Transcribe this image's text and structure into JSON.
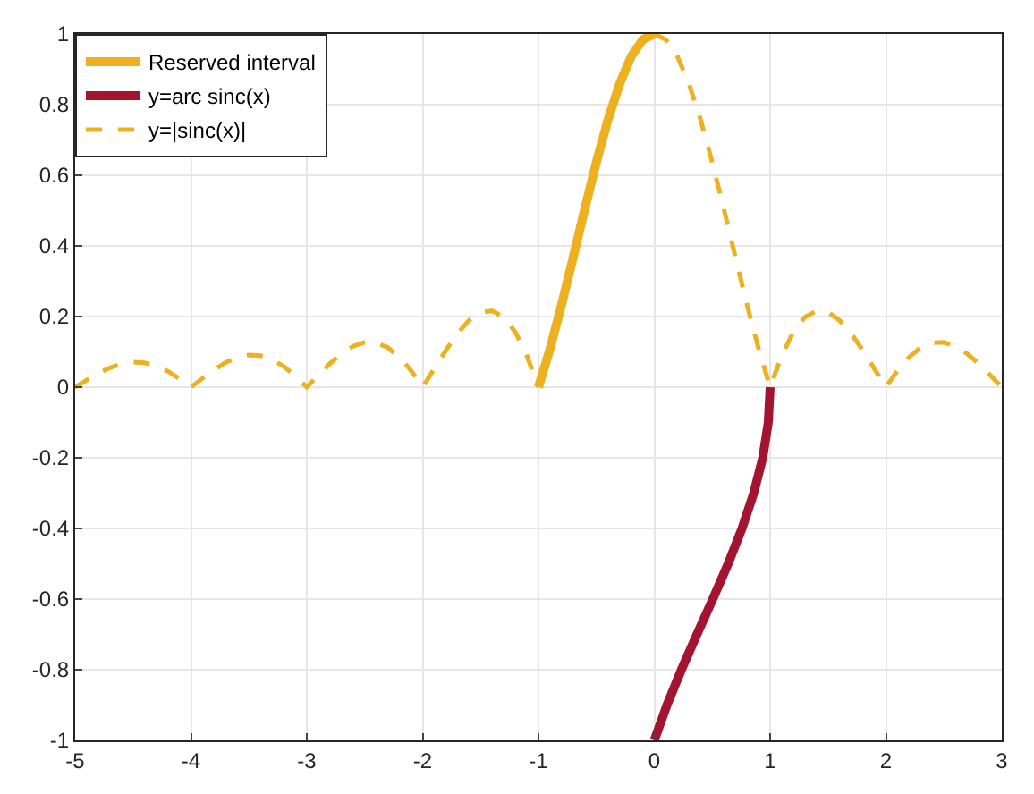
{
  "chart_data": {
    "type": "line",
    "xlim": [
      -5,
      3
    ],
    "xticks": [
      -5,
      -4,
      -3,
      -2,
      -1,
      0,
      1,
      2,
      3
    ],
    "ylim": [
      -1,
      1
    ],
    "yticks": [
      -1,
      -0.8,
      -0.6,
      -0.4,
      -0.2,
      0,
      0.2,
      0.4,
      0.6,
      0.8,
      1
    ],
    "grid": true,
    "legend": "top left",
    "marker": "none",
    "series": [
      {
        "name": "Reserved interval",
        "color": "#edb120",
        "line_style": "solid",
        "x": [
          -1,
          -0.9,
          -0.8,
          -0.7,
          -0.6,
          -0.5,
          -0.4,
          -0.3,
          -0.2,
          -0.1,
          0
        ],
        "values": [
          0,
          0.109,
          0.234,
          0.368,
          0.505,
          0.637,
          0.757,
          0.858,
          0.936,
          0.984,
          1
        ]
      },
      {
        "name": "y=arc sinc(x)",
        "color": "#a2142f",
        "line_style": "solid",
        "x": [
          0,
          0.109,
          0.234,
          0.368,
          0.505,
          0.637,
          0.757,
          0.858,
          0.936,
          0.984,
          1
        ],
        "values": [
          -1,
          -0.9,
          -0.8,
          -0.7,
          -0.6,
          -0.5,
          -0.4,
          -0.3,
          -0.2,
          -0.1,
          0
        ]
      },
      {
        "name": "y=|sinc(x)|",
        "color": "#edb120",
        "line_style": "dashed",
        "x": [
          -5,
          -4.9,
          -4.8,
          -4.7,
          -4.6,
          -4.5,
          -4.4,
          -4.3,
          -4.2,
          -4.1,
          -4,
          -3.9,
          -3.8,
          -3.7,
          -3.6,
          -3.5,
          -3.4,
          -3.3,
          -3.2,
          -3.1,
          -3,
          -2.9,
          -2.8,
          -2.7,
          -2.6,
          -2.5,
          -2.4,
          -2.3,
          -2.2,
          -2.1,
          -2,
          -1.9,
          -1.8,
          -1.7,
          -1.6,
          -1.5,
          -1.4,
          -1.3,
          -1.2,
          -1.1,
          -1,
          -0.5,
          0,
          0.1,
          0.2,
          0.3,
          0.4,
          0.5,
          0.6,
          0.7,
          0.8,
          0.9,
          1,
          1.1,
          1.2,
          1.3,
          1.4,
          1.5,
          1.6,
          1.7,
          1.8,
          1.9,
          2,
          2.1,
          2.2,
          2.3,
          2.4,
          2.5,
          2.6,
          2.7,
          2.8,
          2.9,
          3
        ],
        "values": [
          0,
          0.02,
          0.039,
          0.055,
          0.066,
          0.071,
          0.069,
          0.06,
          0.045,
          0.024,
          0,
          0.025,
          0.049,
          0.07,
          0.084,
          0.091,
          0.089,
          0.078,
          0.059,
          0.032,
          0,
          0.034,
          0.067,
          0.095,
          0.116,
          0.127,
          0.126,
          0.112,
          0.085,
          0.047,
          0,
          0.052,
          0.104,
          0.152,
          0.189,
          0.212,
          0.216,
          0.198,
          0.156,
          0.089,
          0,
          null,
          1,
          0.984,
          0.936,
          0.858,
          0.757,
          0.637,
          0.505,
          0.368,
          0.234,
          0.109,
          0,
          0.089,
          0.156,
          0.198,
          0.216,
          0.212,
          0.189,
          0.152,
          0.104,
          0.052,
          0,
          0.047,
          0.085,
          0.112,
          0.126,
          0.127,
          0.116,
          0.095,
          0.067,
          0.034,
          0
        ]
      }
    ]
  }
}
